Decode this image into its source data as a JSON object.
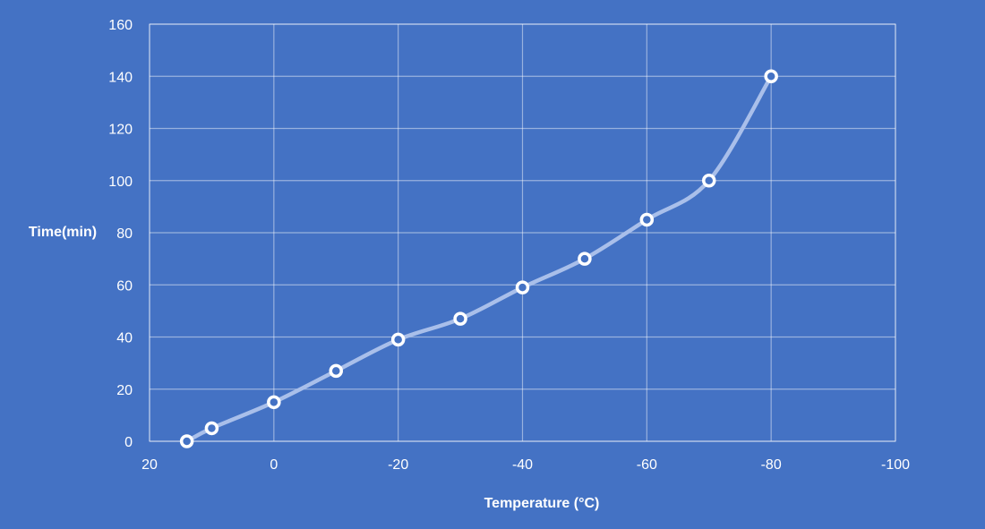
{
  "colors": {
    "background": "#4472C4",
    "grid": "#ffffff",
    "line": "#A9BFEA",
    "marker_fill": "#4472C4",
    "marker_stroke": "#ffffff",
    "text": "#ffffff"
  },
  "chart_data": {
    "type": "scatter",
    "title": "",
    "xlabel": "Temperature (°C)",
    "ylabel": "Time(min)",
    "xlim": [
      20,
      -100
    ],
    "ylim": [
      0,
      160
    ],
    "x_reversed": true,
    "x_ticks": [
      20,
      0,
      -20,
      -40,
      -60,
      -80,
      -100
    ],
    "y_ticks": [
      0,
      20,
      40,
      60,
      80,
      100,
      120,
      140,
      160
    ],
    "grid": true,
    "smooth": true,
    "legend": "none",
    "series": [
      {
        "x": [
          14,
          10,
          0,
          -10,
          -20,
          -30,
          -40,
          -50,
          -60,
          -70,
          -80
        ],
        "y": [
          0,
          5,
          15,
          27,
          39,
          47,
          59,
          70,
          85,
          100,
          140
        ]
      }
    ]
  }
}
